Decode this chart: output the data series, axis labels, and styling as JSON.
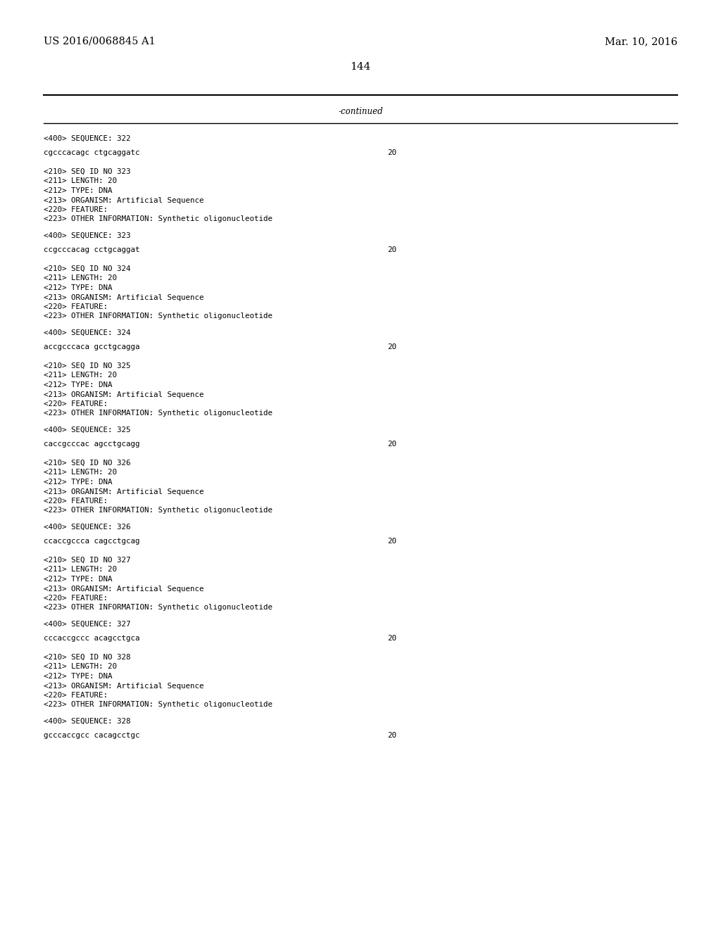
{
  "header_left": "US 2016/0068845 A1",
  "header_right": "Mar. 10, 2016",
  "page_number": "144",
  "continued_text": "-continued",
  "background_color": "#ffffff",
  "text_color": "#000000",
  "font_size_header": 10.5,
  "font_size_body": 8.5,
  "font_size_page": 11,
  "content_blocks": [
    {
      "type": "seq400",
      "line": "<400> SEQUENCE: 322"
    },
    {
      "type": "sequence",
      "line": "cgcccacagc ctgcaggatc",
      "number": "20"
    },
    {
      "type": "seq210",
      "lines": [
        "<210> SEQ ID NO 323",
        "<211> LENGTH: 20",
        "<212> TYPE: DNA",
        "<213> ORGANISM: Artificial Sequence",
        "<220> FEATURE:",
        "<223> OTHER INFORMATION: Synthetic oligonucleotide"
      ]
    },
    {
      "type": "seq400",
      "line": "<400> SEQUENCE: 323"
    },
    {
      "type": "sequence",
      "line": "ccgcccacag cctgcaggat",
      "number": "20"
    },
    {
      "type": "seq210",
      "lines": [
        "<210> SEQ ID NO 324",
        "<211> LENGTH: 20",
        "<212> TYPE: DNA",
        "<213> ORGANISM: Artificial Sequence",
        "<220> FEATURE:",
        "<223> OTHER INFORMATION: Synthetic oligonucleotide"
      ]
    },
    {
      "type": "seq400",
      "line": "<400> SEQUENCE: 324"
    },
    {
      "type": "sequence",
      "line": "accgcccaca gcctgcagga",
      "number": "20"
    },
    {
      "type": "seq210",
      "lines": [
        "<210> SEQ ID NO 325",
        "<211> LENGTH: 20",
        "<212> TYPE: DNA",
        "<213> ORGANISM: Artificial Sequence",
        "<220> FEATURE:",
        "<223> OTHER INFORMATION: Synthetic oligonucleotide"
      ]
    },
    {
      "type": "seq400",
      "line": "<400> SEQUENCE: 325"
    },
    {
      "type": "sequence",
      "line": "caccgcccac agcctgcagg",
      "number": "20"
    },
    {
      "type": "seq210",
      "lines": [
        "<210> SEQ ID NO 326",
        "<211> LENGTH: 20",
        "<212> TYPE: DNA",
        "<213> ORGANISM: Artificial Sequence",
        "<220> FEATURE:",
        "<223> OTHER INFORMATION: Synthetic oligonucleotide"
      ]
    },
    {
      "type": "seq400",
      "line": "<400> SEQUENCE: 326"
    },
    {
      "type": "sequence",
      "line": "ccaccgccca cagcctgcag",
      "number": "20"
    },
    {
      "type": "seq210",
      "lines": [
        "<210> SEQ ID NO 327",
        "<211> LENGTH: 20",
        "<212> TYPE: DNA",
        "<213> ORGANISM: Artificial Sequence",
        "<220> FEATURE:",
        "<223> OTHER INFORMATION: Synthetic oligonucleotide"
      ]
    },
    {
      "type": "seq400",
      "line": "<400> SEQUENCE: 327"
    },
    {
      "type": "sequence",
      "line": "cccaccgccc acagcctgca",
      "number": "20"
    },
    {
      "type": "seq210",
      "lines": [
        "<210> SEQ ID NO 328",
        "<211> LENGTH: 20",
        "<212> TYPE: DNA",
        "<213> ORGANISM: Artificial Sequence",
        "<220> FEATURE:",
        "<223> OTHER INFORMATION: Synthetic oligonucleotide"
      ]
    },
    {
      "type": "seq400",
      "line": "<400> SEQUENCE: 328"
    },
    {
      "type": "sequence",
      "line": "gcccaccgcc cacagcctgc",
      "number": "20"
    }
  ]
}
